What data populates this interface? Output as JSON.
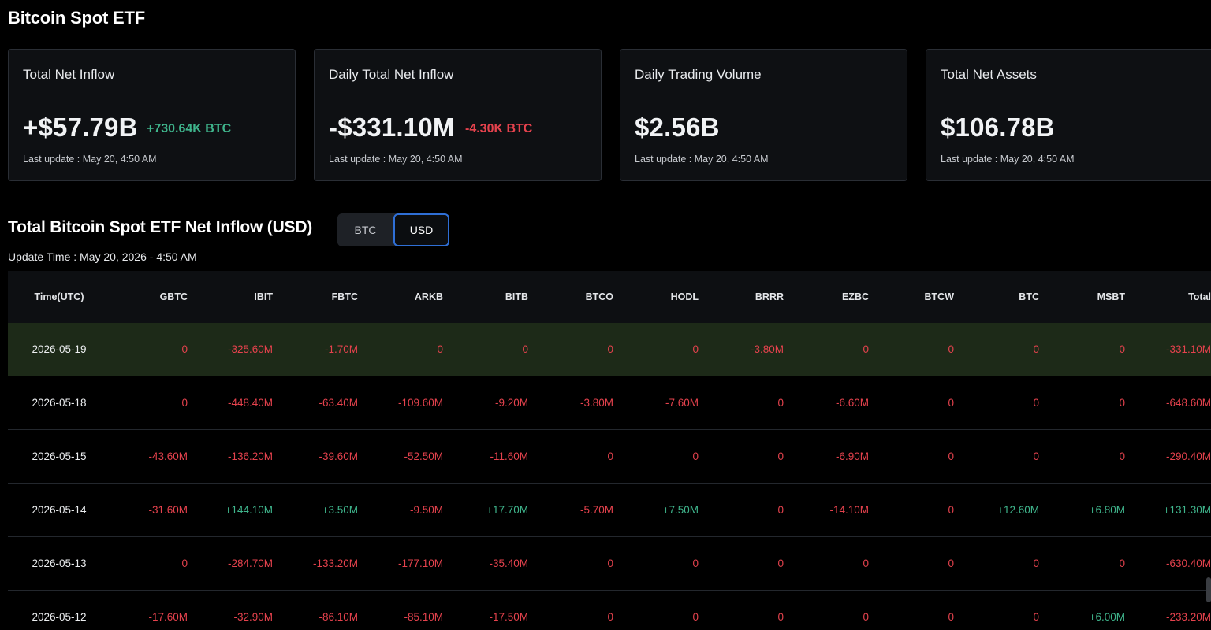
{
  "header": {
    "title": "Bitcoin Spot ETF"
  },
  "cards": [
    {
      "label": "Total Net Inflow",
      "value": "+$57.79B",
      "value_sign": "pos",
      "sub": "+730.64K BTC",
      "sub_sign": "pos",
      "update": "Last update : May 20, 4:50 AM"
    },
    {
      "label": "Daily Total Net Inflow",
      "value": "-$331.10M",
      "value_sign": "neg",
      "sub": "-4.30K BTC",
      "sub_sign": "neg",
      "update": "Last update : May 20, 4:50 AM"
    },
    {
      "label": "Daily Trading Volume",
      "value": "$2.56B",
      "value_sign": "neutral",
      "sub": "",
      "sub_sign": "",
      "update": "Last update : May 20, 4:50 AM"
    },
    {
      "label": "Total Net Assets",
      "value": "$106.78B",
      "value_sign": "neutral",
      "sub": "",
      "sub_sign": "",
      "update": "Last update : May 20, 4:50 AM"
    }
  ],
  "section": {
    "title": "Total Bitcoin Spot ETF Net Inflow (USD)",
    "toggle": {
      "options": [
        "BTC",
        "USD"
      ],
      "selected": "USD"
    },
    "update_time": "Update Time : May 20, 2026 - 4:50 AM"
  },
  "table": {
    "columns": [
      "Time(UTC)",
      "GBTC",
      "IBIT",
      "FBTC",
      "ARKB",
      "BITB",
      "BTCO",
      "HODL",
      "BRRR",
      "EZBC",
      "BTCW",
      "BTC",
      "MSBT",
      "Total"
    ],
    "rows": [
      {
        "date": "2026-05-19",
        "highlight": true,
        "values": [
          "0",
          "-325.60M",
          "-1.70M",
          "0",
          "0",
          "0",
          "0",
          "-3.80M",
          "0",
          "0",
          "0",
          "0",
          "-331.10M"
        ]
      },
      {
        "date": "2026-05-18",
        "highlight": false,
        "values": [
          "0",
          "-448.40M",
          "-63.40M",
          "-109.60M",
          "-9.20M",
          "-3.80M",
          "-7.60M",
          "0",
          "-6.60M",
          "0",
          "0",
          "0",
          "-648.60M"
        ]
      },
      {
        "date": "2026-05-15",
        "highlight": false,
        "values": [
          "-43.60M",
          "-136.20M",
          "-39.60M",
          "-52.50M",
          "-11.60M",
          "0",
          "0",
          "0",
          "-6.90M",
          "0",
          "0",
          "0",
          "-290.40M"
        ]
      },
      {
        "date": "2026-05-14",
        "highlight": false,
        "values": [
          "-31.60M",
          "+144.10M",
          "+3.50M",
          "-9.50M",
          "+17.70M",
          "-5.70M",
          "+7.50M",
          "0",
          "-14.10M",
          "0",
          "+12.60M",
          "+6.80M",
          "+131.30M"
        ]
      },
      {
        "date": "2026-05-13",
        "highlight": false,
        "values": [
          "0",
          "-284.70M",
          "-133.20M",
          "-177.10M",
          "-35.40M",
          "0",
          "0",
          "0",
          "0",
          "0",
          "0",
          "0",
          "-630.40M"
        ]
      },
      {
        "date": "2026-05-12",
        "highlight": false,
        "values": [
          "-17.60M",
          "-32.90M",
          "-86.10M",
          "-85.10M",
          "-17.50M",
          "0",
          "0",
          "0",
          "0",
          "0",
          "0",
          "+6.00M",
          "-233.20M"
        ]
      }
    ]
  },
  "colors": {
    "positive": "#3fb58c",
    "negative": "#e5424d",
    "highlight_row": "#1d2a18",
    "accent": "#2f6fd6"
  }
}
